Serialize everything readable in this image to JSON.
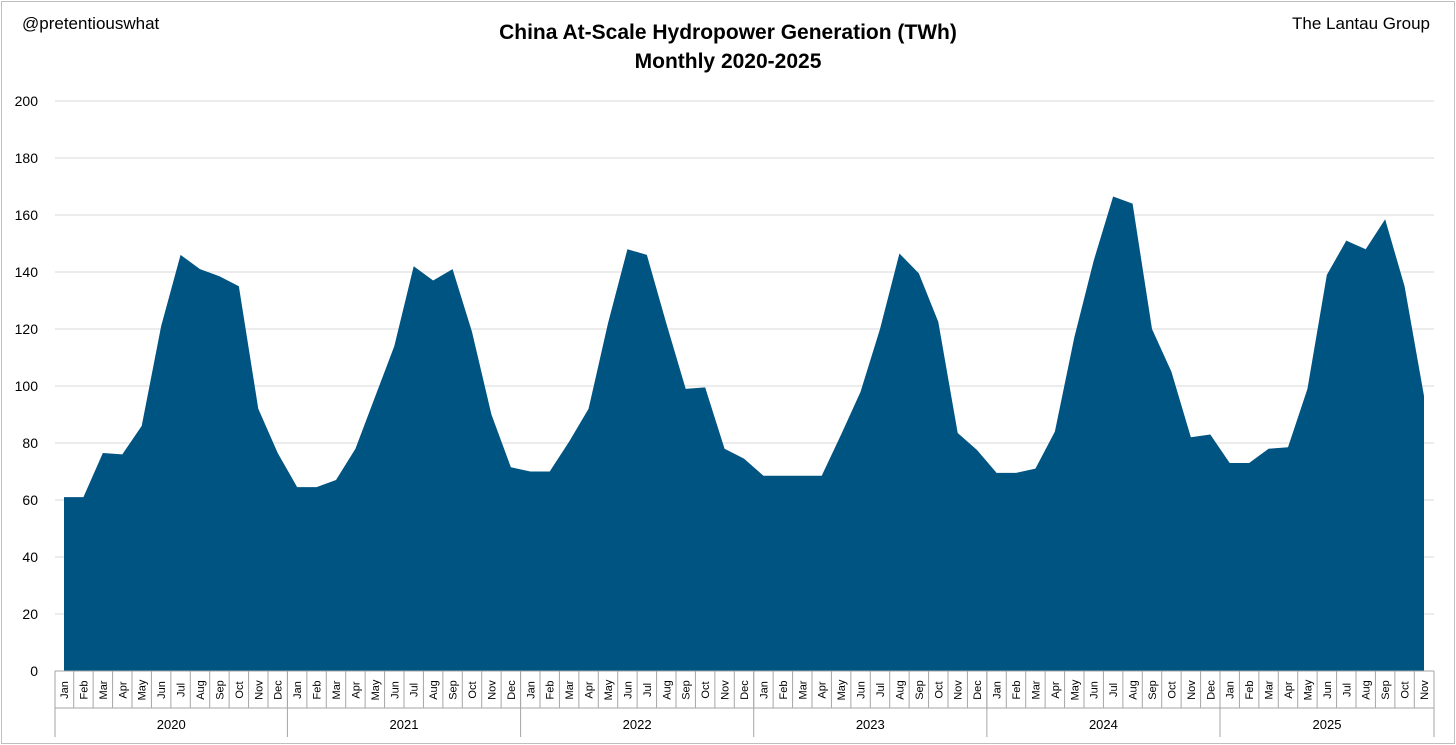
{
  "header": {
    "handle": "@pretentiouswhat",
    "brand": "The Lantau Group",
    "title_line1": "China At-Scale Hydropower Generation (TWh)",
    "title_line2": "Monthly 2020-2025"
  },
  "colors": {
    "area": "#005482",
    "grid": "#d9d9d9",
    "axis": "#a6a6a6"
  },
  "chart_data": {
    "type": "area",
    "title": "China At-Scale Hydropower Generation (TWh) Monthly 2020-2025",
    "xlabel": "",
    "ylabel": "TWh",
    "ylim": [
      0,
      200
    ],
    "yticks": [
      0,
      20,
      40,
      60,
      80,
      100,
      120,
      140,
      160,
      180,
      200
    ],
    "grid": true,
    "month_labels": [
      "Jan",
      "Feb",
      "Mar",
      "Apr",
      "May",
      "Jun",
      "Jul",
      "Aug",
      "Sep",
      "Oct",
      "Nov",
      "Dec"
    ],
    "years": [
      {
        "year": "2020",
        "months": 12
      },
      {
        "year": "2021",
        "months": 12
      },
      {
        "year": "2022",
        "months": 12
      },
      {
        "year": "2023",
        "months": 12
      },
      {
        "year": "2024",
        "months": 12
      },
      {
        "year": "2025",
        "months": 11
      }
    ],
    "values": [
      61,
      61,
      76.5,
      76,
      86,
      121,
      146,
      141,
      138.5,
      135,
      92,
      76.5,
      64.5,
      64.5,
      67,
      78,
      96,
      114,
      142,
      137,
      141,
      119,
      90,
      71.5,
      70,
      70,
      80.5,
      92,
      122,
      148,
      146,
      122,
      99,
      99.5,
      78,
      74.5,
      68.5,
      68.5,
      68.5,
      68.5,
      83,
      98,
      120,
      146.5,
      139.5,
      122.5,
      83.5,
      77.5,
      69.5,
      69.5,
      71,
      84,
      117,
      144,
      166.5,
      164,
      120,
      105,
      82,
      83,
      73,
      73,
      78,
      78.5,
      99,
      139,
      151,
      148,
      158.5,
      135,
      96.5
    ]
  }
}
